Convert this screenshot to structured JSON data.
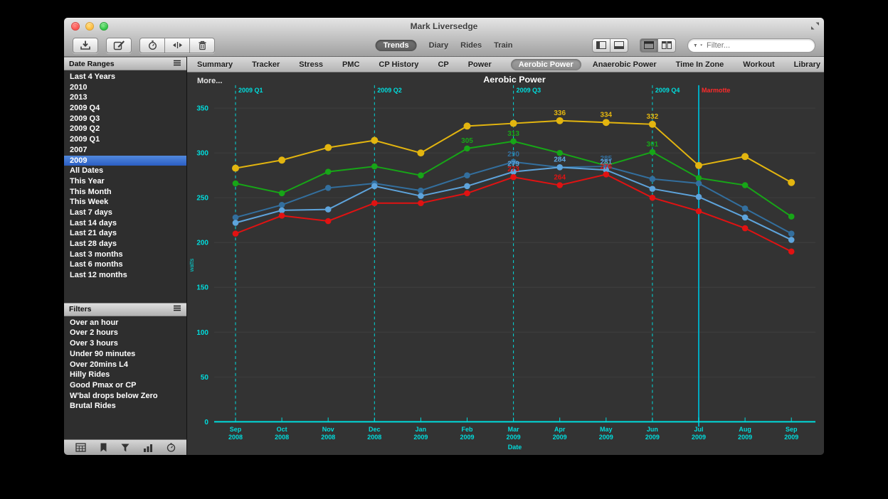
{
  "window": {
    "title": "Mark Liversedge"
  },
  "toolbar": {
    "view_segments": [
      "Trends",
      "Diary",
      "Rides",
      "Train"
    ],
    "active_view": "Trends",
    "filter_placeholder": "Filter...",
    "icon_names": [
      "download-icon",
      "compose-icon",
      "interval-icon",
      "split-icon",
      "trash-icon",
      "sidebar-toggle-icon",
      "bottombar-toggle-icon",
      "single-view-icon",
      "tiled-view-icon",
      "filter-funnel-icon",
      "fullscreen-icon"
    ]
  },
  "tabs": {
    "items": [
      "Summary",
      "Tracker",
      "Stress",
      "PMC",
      "CP History",
      "CP",
      "Power",
      "Aerobic Power",
      "Anaerobic Power",
      "Time In Zone",
      "Workout",
      "Library"
    ],
    "active": "Aerobic Power"
  },
  "sidebar": {
    "date_ranges": {
      "header": "Date Ranges",
      "items": [
        "Last 4 Years",
        "2010",
        "2013",
        "2009 Q4",
        "2009 Q3",
        "2009 Q2",
        "2009 Q1",
        "2007",
        "2009",
        "All Dates",
        "This Year",
        "This Month",
        "This Week",
        "Last 7 days",
        "Last 14 days",
        "Last 21 days",
        "Last 28 days",
        "Last 3 months",
        "Last 6 months",
        "Last 12 months"
      ],
      "selected": "2009"
    },
    "filters": {
      "header": "Filters",
      "items": [
        "Over an hour",
        "Over 2 hours",
        "Over 3 hours",
        "Under 90 minutes",
        "Over 20mins L4",
        "Hilly Rides",
        "Good Pmax or CP",
        "W'bal drops below Zero",
        "Brutal Rides"
      ]
    },
    "footer_icon_names": [
      "calendar-icon",
      "bookmark-icon",
      "filter-icon",
      "chart-icon",
      "stopwatch-icon"
    ]
  },
  "chart_data": {
    "type": "line",
    "title": "Aerobic Power",
    "more_label": "More...",
    "xlabel": "Date",
    "ylabel": "watts",
    "ylim": [
      0,
      370
    ],
    "yticks": [
      0,
      50,
      100,
      150,
      200,
      250,
      300,
      350
    ],
    "grid": true,
    "legend": "none",
    "axis_color": "#00dcdc",
    "grid_color": "#3f3f3f",
    "bg_color": "#333333",
    "x_categories": [
      [
        "Sep",
        "2008"
      ],
      [
        "Oct",
        "2008"
      ],
      [
        "Nov",
        "2008"
      ],
      [
        "Dec",
        "2008"
      ],
      [
        "Jan",
        "2009"
      ],
      [
        "Feb",
        "2009"
      ],
      [
        "Mar",
        "2009"
      ],
      [
        "Apr",
        "2009"
      ],
      [
        "May",
        "2009"
      ],
      [
        "Jun",
        "2009"
      ],
      [
        "Jul",
        "2009"
      ],
      [
        "Aug",
        "2009"
      ],
      [
        "Sep",
        "2009"
      ]
    ],
    "series": [
      {
        "name": "yellow",
        "color": "#e3b50f",
        "values": [
          283,
          292,
          306,
          314,
          300,
          330,
          333,
          336,
          334,
          332,
          286,
          296,
          267
        ],
        "point_labels": {
          "7": "336",
          "8": "334",
          "9": "332"
        }
      },
      {
        "name": "green",
        "color": "#17a617",
        "values": [
          266,
          255,
          279,
          285,
          275,
          305,
          313,
          300,
          286,
          301,
          272,
          264,
          229
        ],
        "point_labels": {
          "5": "305",
          "6": "313",
          "9": "301"
        }
      },
      {
        "name": "steel-blue",
        "color": "#336f9e",
        "values": [
          228,
          242,
          261,
          266,
          258,
          275,
          290,
          284,
          285,
          271,
          266,
          238,
          210
        ],
        "point_labels": {
          "6": "290",
          "7": "284",
          "8": "285"
        }
      },
      {
        "name": "light-blue",
        "color": "#5ea4dc",
        "values": [
          222,
          236,
          237,
          263,
          252,
          263,
          279,
          284,
          281,
          260,
          251,
          228,
          203
        ],
        "point_labels": {
          "6": "279",
          "7": "284",
          "8": "281"
        }
      },
      {
        "name": "red",
        "color": "#e11212",
        "values": [
          210,
          230,
          224,
          244,
          244,
          255,
          273,
          264,
          276,
          250,
          235,
          216,
          190
        ],
        "point_labels": {
          "6": "273",
          "7": "264",
          "8": "276"
        }
      }
    ],
    "markers": [
      {
        "x_index": 0,
        "label": "2009 Q1",
        "style": "dashed",
        "label_color": "#00dcdc"
      },
      {
        "x_index": 3,
        "label": "2009 Q2",
        "style": "dashed",
        "label_color": "#00dcdc"
      },
      {
        "x_index": 6,
        "label": "2009 Q3",
        "style": "dashed",
        "label_color": "#00dcdc"
      },
      {
        "x_index": 9,
        "label": "2009 Q4",
        "style": "dashed",
        "label_color": "#00dcdc"
      },
      {
        "x_index": 10,
        "label": "Marmotte",
        "style": "solid",
        "label_color": "#ff2a2a"
      }
    ]
  }
}
